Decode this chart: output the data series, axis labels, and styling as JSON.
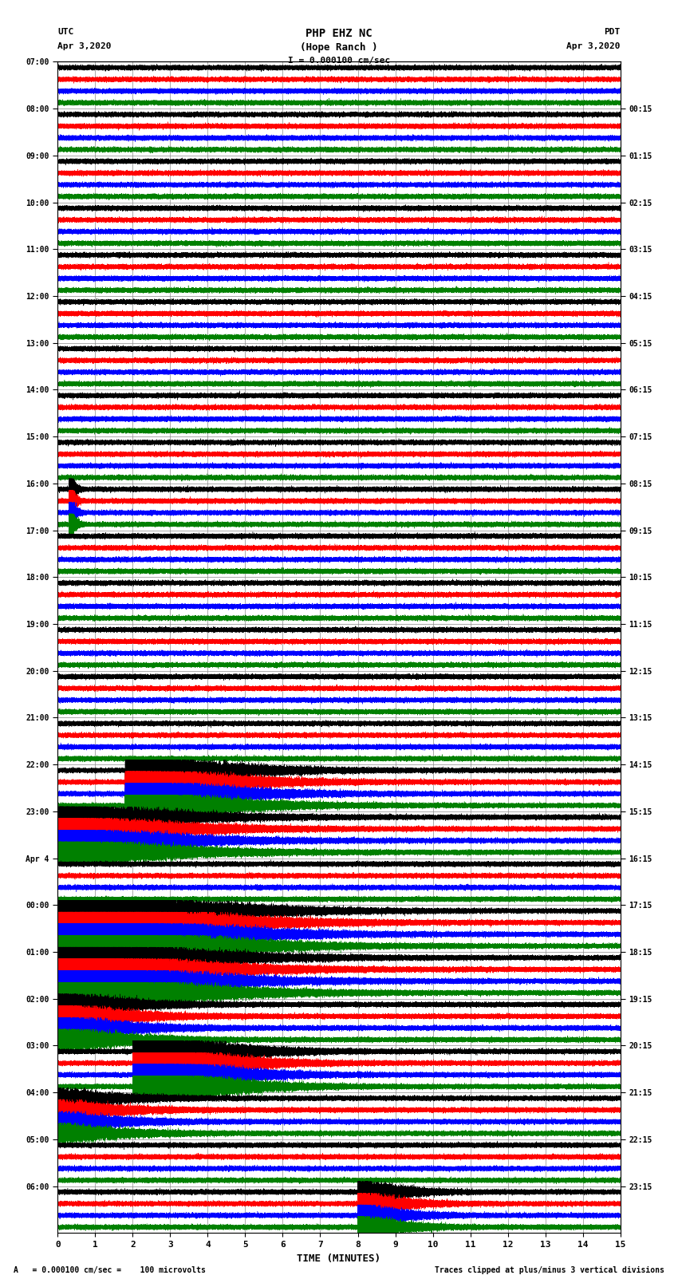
{
  "title_line1": "PHP EHZ NC",
  "title_line2": "(Hope Ranch )",
  "scale_label": "I = 0.000100 cm/sec",
  "left_header": "UTC",
  "left_date": "Apr 3,2020",
  "right_header": "PDT",
  "right_date": "Apr 3,2020",
  "xlabel": "TIME (MINUTES)",
  "footer_left": "A   = 0.000100 cm/sec =    100 microvolts",
  "footer_right": "Traces clipped at plus/minus 3 vertical divisions",
  "utc_times": [
    "07:00",
    "08:00",
    "09:00",
    "10:00",
    "11:00",
    "12:00",
    "13:00",
    "14:00",
    "15:00",
    "16:00",
    "17:00",
    "18:00",
    "19:00",
    "20:00",
    "21:00",
    "22:00",
    "23:00",
    "Apr 4",
    "00:00",
    "01:00",
    "02:00",
    "03:00",
    "04:00",
    "05:00",
    "06:00"
  ],
  "pdt_times": [
    "00:15",
    "01:15",
    "02:15",
    "03:15",
    "04:15",
    "05:15",
    "06:15",
    "07:15",
    "08:15",
    "09:15",
    "10:15",
    "11:15",
    "12:15",
    "13:15",
    "14:15",
    "15:15",
    "16:15",
    "17:15",
    "18:15",
    "19:15",
    "20:15",
    "21:15",
    "22:15",
    "23:15"
  ],
  "colors": [
    "black",
    "red",
    "blue",
    "green"
  ],
  "bg_color": "white",
  "n_rows": 25,
  "traces_per_row": 4,
  "minutes": 15,
  "xmin": 0,
  "xmax": 15
}
